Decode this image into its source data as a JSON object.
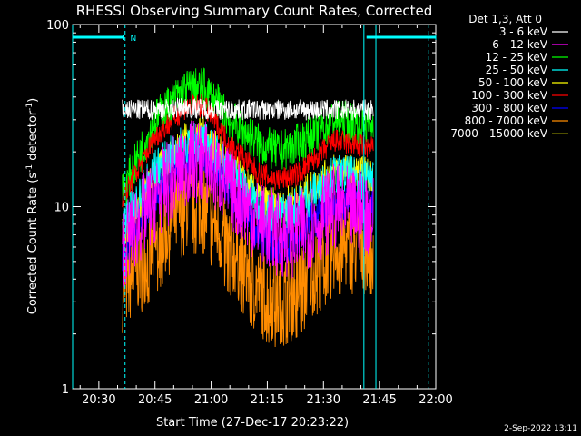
{
  "chart_data": {
    "type": "line",
    "title": "RHESSI Observing Summary Count Rates, Corrected",
    "xlabel": "Start Time (27-Dec-17 20:23:22)",
    "ylabel": "Corrected Count Rate (s",
    "ylabel_sup1": "-1",
    "ylabel_mid": " detector",
    "ylabel_sup2": "-1",
    "ylabel_end": ")",
    "y_scale": "log",
    "ylim": [
      1,
      100
    ],
    "xlim_minutes_after_2023": [
      0,
      97
    ],
    "x_ticks": [
      {
        "label": "20:30",
        "t": 7
      },
      {
        "label": "20:45",
        "t": 22
      },
      {
        "label": "21:00",
        "t": 37
      },
      {
        "label": "21:15",
        "t": 52
      },
      {
        "label": "21:30",
        "t": 67
      },
      {
        "label": "21:45",
        "t": 82
      },
      {
        "label": "22:00",
        "t": 97
      }
    ],
    "y_ticks": [
      {
        "label": "1",
        "v": 1
      },
      {
        "label": "10",
        "v": 10
      },
      {
        "label": "100",
        "v": 100
      }
    ],
    "legend_header": "Det 1,3, Att 0",
    "legend_position": "right",
    "data_start_t": 13.3,
    "data_end_t": 80.3,
    "series": [
      {
        "name": "3 - 6 keV",
        "color": "#ffffff",
        "points": [
          [
            13.3,
            34
          ],
          [
            20,
            34
          ],
          [
            30,
            35
          ],
          [
            40,
            34
          ],
          [
            50,
            34
          ],
          [
            60,
            34
          ],
          [
            70,
            34
          ],
          [
            80,
            34
          ]
        ],
        "noise": 0.06
      },
      {
        "name": "6 - 12 keV",
        "color": "#ff00ff",
        "points": [
          [
            13.3,
            6
          ],
          [
            22,
            11
          ],
          [
            30,
            17
          ],
          [
            35,
            18
          ],
          [
            42,
            13
          ],
          [
            50,
            8
          ],
          [
            55,
            7
          ],
          [
            60,
            7
          ],
          [
            70,
            10
          ],
          [
            80,
            9
          ]
        ],
        "noise": 0.25
      },
      {
        "name": "12 - 25 keV",
        "color": "#00ff00",
        "points": [
          [
            13.3,
            12
          ],
          [
            22,
            30
          ],
          [
            30,
            44
          ],
          [
            35,
            45
          ],
          [
            42,
            30
          ],
          [
            50,
            22
          ],
          [
            55,
            20
          ],
          [
            60,
            22
          ],
          [
            70,
            30
          ],
          [
            80,
            28
          ]
        ],
        "noise": 0.12
      },
      {
        "name": "25 - 50 keV",
        "color": "#00ffff",
        "points": [
          [
            13.3,
            8
          ],
          [
            22,
            16
          ],
          [
            30,
            22
          ],
          [
            35,
            23
          ],
          [
            42,
            16
          ],
          [
            50,
            10
          ],
          [
            55,
            9
          ],
          [
            60,
            10
          ],
          [
            70,
            15
          ],
          [
            80,
            14
          ]
        ],
        "noise": 0.12
      },
      {
        "name": "50 - 100 keV",
        "color": "#ffff00",
        "points": [
          [
            13.3,
            7
          ],
          [
            22,
            15
          ],
          [
            30,
            24
          ],
          [
            35,
            25
          ],
          [
            42,
            17
          ],
          [
            50,
            11
          ],
          [
            55,
            10
          ],
          [
            60,
            11
          ],
          [
            70,
            16
          ],
          [
            80,
            15
          ]
        ],
        "noise": 0.1
      },
      {
        "name": "100 - 300 keV",
        "color": "#ff0000",
        "points": [
          [
            13.3,
            11
          ],
          [
            22,
            24
          ],
          [
            30,
            35
          ],
          [
            35,
            36
          ],
          [
            42,
            22
          ],
          [
            50,
            15
          ],
          [
            55,
            14
          ],
          [
            60,
            15
          ],
          [
            70,
            23
          ],
          [
            80,
            21
          ]
        ],
        "noise": 0.07
      },
      {
        "name": "300 - 800 keV",
        "color": "#0000ff",
        "points": [
          [
            13.3,
            5.5
          ],
          [
            22,
            12
          ],
          [
            30,
            19
          ],
          [
            35,
            20
          ],
          [
            42,
            12
          ],
          [
            50,
            7
          ],
          [
            55,
            6
          ],
          [
            60,
            7
          ],
          [
            70,
            11
          ],
          [
            80,
            10
          ]
        ],
        "noise": 0.12
      },
      {
        "name": "800 - 7000 keV",
        "color": "#ff8c00",
        "points": [
          [
            13.3,
            3.5
          ],
          [
            22,
            6
          ],
          [
            30,
            10
          ],
          [
            35,
            10
          ],
          [
            42,
            6
          ],
          [
            50,
            3.5
          ],
          [
            55,
            3
          ],
          [
            60,
            3.5
          ],
          [
            70,
            6
          ],
          [
            80,
            6
          ]
        ],
        "noise": 0.25
      },
      {
        "name": "7000 - 15000 keV",
        "color": "#808000",
        "points": [
          [
            13.3,
            3
          ],
          [
            80,
            3
          ]
        ],
        "noise": 0.1,
        "hidden_behind": true
      }
    ],
    "night_markers": [
      {
        "label": "N",
        "start_t": 0,
        "end_t": 13.7
      },
      {
        "label": "",
        "start_t": 78.5,
        "end_t": 97
      }
    ],
    "vertical_lines": [
      {
        "t": 0,
        "style": "solid"
      },
      {
        "t": 14.0,
        "style": "dashed"
      },
      {
        "t": 77.8,
        "style": "solid"
      },
      {
        "t": 81.0,
        "style": "solid"
      },
      {
        "t": 95.0,
        "style": "dashed"
      }
    ]
  },
  "footer": {
    "timestamp": "2-Sep-2022 13:11"
  }
}
